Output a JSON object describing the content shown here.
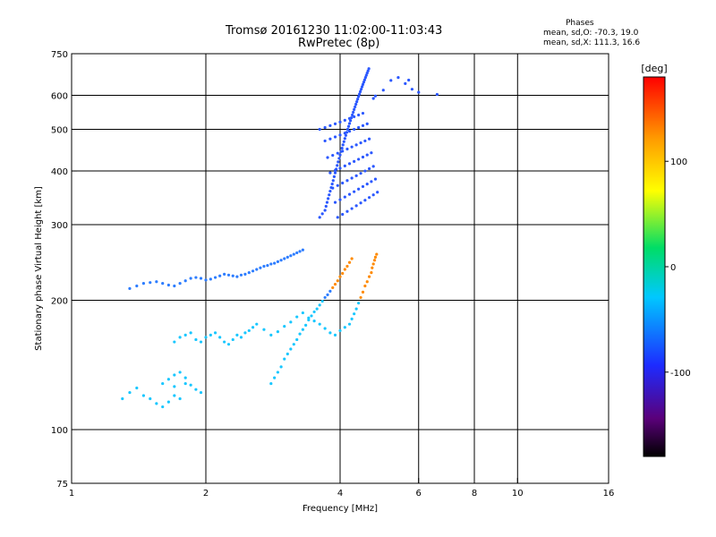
{
  "header": {
    "title": "Tromsø 20161230 11:02:00-11:03:43",
    "subtitle": "RwPretec (8p)"
  },
  "phase_info": {
    "heading": "Phases",
    "line_o": "mean, sd,O: -70.3, 19.0",
    "line_x": "mean, sd,X: 111.3, 16.6"
  },
  "chart_data": {
    "type": "scatter",
    "title": "Tromsø 20161230 11:02:00-11:03:43",
    "subtitle": "RwPretec (8p)",
    "xlabel": "Frequency [MHz]",
    "ylabel": "Stationary phase Virtual Height [km]",
    "x_scale": "log",
    "y_scale": "log",
    "xlim": [
      1,
      16
    ],
    "ylim": [
      75,
      750
    ],
    "x_ticks": [
      1,
      2,
      4,
      6,
      8,
      10,
      16
    ],
    "y_ticks": [
      75,
      100,
      200,
      300,
      400,
      500,
      600,
      750
    ],
    "grid": true,
    "grid_x": [
      2,
      4,
      6,
      8,
      10
    ],
    "grid_y": [
      100,
      200,
      300,
      400,
      500,
      600
    ],
    "colorbar": {
      "label": "[deg]",
      "min": -180,
      "max": 180,
      "ticks": [
        100,
        0,
        -100
      ]
    },
    "series": [
      {
        "points": [
          [
            1.3,
            118
          ],
          [
            1.35,
            122
          ],
          [
            1.4,
            125
          ],
          [
            1.45,
            120
          ],
          [
            1.5,
            118
          ],
          [
            1.55,
            115
          ],
          [
            1.6,
            113
          ],
          [
            1.65,
            116
          ],
          [
            1.7,
            120
          ],
          [
            1.75,
            118
          ],
          [
            1.6,
            128
          ],
          [
            1.65,
            131
          ],
          [
            1.7,
            134
          ],
          [
            1.75,
            136
          ],
          [
            1.8,
            132
          ],
          [
            1.7,
            126
          ],
          [
            1.8,
            128
          ],
          [
            1.85,
            127
          ],
          [
            1.9,
            124
          ],
          [
            1.95,
            122
          ],
          [
            1.7,
            160
          ],
          [
            1.75,
            164
          ],
          [
            1.8,
            166
          ],
          [
            1.85,
            168
          ],
          [
            1.9,
            162
          ],
          [
            1.95,
            160
          ],
          [
            2.0,
            164
          ],
          [
            2.05,
            166
          ],
          [
            2.1,
            168
          ],
          [
            2.15,
            164
          ],
          [
            2.2,
            160
          ],
          [
            2.25,
            158
          ],
          [
            2.3,
            162
          ],
          [
            2.35,
            166
          ],
          [
            2.4,
            164
          ],
          [
            2.45,
            168
          ],
          [
            2.5,
            170
          ],
          [
            2.55,
            173
          ],
          [
            2.6,
            176
          ],
          [
            2.7,
            171
          ],
          [
            2.8,
            166
          ],
          [
            2.9,
            169
          ],
          [
            3.0,
            174
          ],
          [
            3.1,
            178
          ],
          [
            3.2,
            183
          ],
          [
            3.3,
            187
          ],
          [
            3.4,
            182
          ],
          [
            3.5,
            179
          ],
          [
            3.6,
            176
          ],
          [
            3.7,
            172
          ],
          [
            3.8,
            168
          ],
          [
            3.9,
            166
          ],
          [
            4.0,
            170
          ],
          [
            4.1,
            173
          ],
          [
            4.2,
            176
          ],
          [
            4.25,
            181
          ],
          [
            4.3,
            186
          ],
          [
            4.35,
            191
          ],
          [
            4.4,
            197
          ],
          [
            4.45,
            203
          ],
          [
            4.5,
            209
          ],
          [
            4.55,
            216
          ],
          [
            4.6,
            221
          ],
          [
            4.65,
            227
          ],
          [
            4.7,
            232
          ],
          [
            4.72,
            238
          ],
          [
            4.75,
            243
          ],
          [
            4.78,
            248
          ],
          [
            4.8,
            252
          ],
          [
            4.83,
            256
          ],
          [
            1.35,
            213
          ],
          [
            1.4,
            216
          ],
          [
            1.45,
            219
          ],
          [
            1.5,
            220
          ],
          [
            1.55,
            221
          ],
          [
            1.6,
            219
          ],
          [
            1.65,
            217
          ],
          [
            1.7,
            216
          ],
          [
            1.75,
            219
          ],
          [
            1.8,
            222
          ],
          [
            1.85,
            225
          ],
          [
            1.9,
            226
          ],
          [
            1.95,
            225
          ],
          [
            2.0,
            223
          ],
          [
            2.05,
            224
          ],
          [
            2.1,
            226
          ],
          [
            2.15,
            228
          ],
          [
            2.2,
            230
          ],
          [
            2.25,
            229
          ],
          [
            2.3,
            228
          ],
          [
            2.35,
            227
          ],
          [
            2.4,
            229
          ],
          [
            2.45,
            230
          ],
          [
            2.5,
            232
          ],
          [
            2.55,
            234
          ],
          [
            2.6,
            236
          ],
          [
            2.65,
            238
          ],
          [
            2.7,
            240
          ],
          [
            2.75,
            241
          ],
          [
            2.8,
            243
          ],
          [
            2.85,
            244
          ],
          [
            2.9,
            246
          ],
          [
            2.95,
            248
          ],
          [
            3.0,
            250
          ],
          [
            3.05,
            252
          ],
          [
            3.1,
            254
          ],
          [
            3.15,
            256
          ],
          [
            3.2,
            258
          ],
          [
            3.25,
            260
          ],
          [
            3.3,
            262
          ],
          [
            2.8,
            128
          ],
          [
            2.85,
            132
          ],
          [
            2.9,
            136
          ],
          [
            2.95,
            140
          ],
          [
            3.0,
            146
          ],
          [
            3.05,
            150
          ],
          [
            3.1,
            154
          ],
          [
            3.15,
            158
          ],
          [
            3.2,
            162
          ],
          [
            3.25,
            167
          ],
          [
            3.3,
            171
          ],
          [
            3.35,
            175
          ],
          [
            3.4,
            180
          ],
          [
            3.45,
            184
          ],
          [
            3.5,
            188
          ],
          [
            3.55,
            191
          ],
          [
            3.6,
            195
          ],
          [
            3.65,
            199
          ],
          [
            3.7,
            203
          ],
          [
            3.75,
            206
          ],
          [
            3.8,
            210
          ],
          [
            3.85,
            214
          ],
          [
            3.9,
            218
          ],
          [
            3.95,
            222
          ],
          [
            4.0,
            227
          ],
          [
            4.05,
            231
          ],
          [
            4.1,
            236
          ],
          [
            4.15,
            240
          ],
          [
            4.2,
            245
          ],
          [
            4.25,
            250
          ],
          [
            3.6,
            312
          ],
          [
            3.65,
            318
          ],
          [
            3.7,
            324
          ],
          [
            3.72,
            331
          ],
          [
            3.74,
            338
          ],
          [
            3.76,
            345
          ],
          [
            3.78,
            352
          ],
          [
            3.8,
            359
          ],
          [
            3.82,
            366
          ],
          [
            3.84,
            373
          ],
          [
            3.86,
            380
          ],
          [
            3.88,
            388
          ],
          [
            3.9,
            396
          ],
          [
            3.92,
            404
          ],
          [
            3.94,
            412
          ],
          [
            3.96,
            420
          ],
          [
            3.98,
            428
          ],
          [
            4.0,
            436
          ],
          [
            4.02,
            444
          ],
          [
            4.04,
            452
          ],
          [
            4.06,
            460
          ],
          [
            4.08,
            468
          ],
          [
            4.1,
            476
          ],
          [
            4.12,
            484
          ],
          [
            4.14,
            492
          ],
          [
            4.16,
            500
          ],
          [
            4.18,
            508
          ],
          [
            4.2,
            516
          ],
          [
            4.22,
            524
          ],
          [
            4.24,
            532
          ],
          [
            4.26,
            540
          ],
          [
            4.28,
            548
          ],
          [
            4.3,
            556
          ],
          [
            4.32,
            564
          ],
          [
            4.34,
            572
          ],
          [
            4.36,
            580
          ],
          [
            4.38,
            588
          ],
          [
            4.4,
            596
          ],
          [
            4.42,
            604
          ],
          [
            4.44,
            612
          ],
          [
            4.46,
            620
          ],
          [
            4.48,
            628
          ],
          [
            4.5,
            636
          ],
          [
            4.52,
            644
          ],
          [
            4.54,
            652
          ],
          [
            4.56,
            660
          ],
          [
            4.58,
            668
          ],
          [
            4.6,
            676
          ],
          [
            4.62,
            684
          ],
          [
            4.64,
            692
          ],
          [
            6.6,
            603
          ],
          [
            5.7,
            651
          ],
          [
            5.6,
            639
          ],
          [
            5.0,
            617
          ],
          [
            4.8,
            598
          ],
          [
            4.75,
            590
          ],
          [
            5.2,
            650
          ],
          [
            5.4,
            660
          ],
          [
            5.8,
            620
          ],
          [
            6.0,
            610
          ],
          [
            3.6,
            500
          ],
          [
            3.7,
            505
          ],
          [
            3.8,
            510
          ],
          [
            3.9,
            515
          ],
          [
            4.0,
            520
          ],
          [
            4.1,
            525
          ],
          [
            4.2,
            530
          ],
          [
            4.3,
            535
          ],
          [
            4.4,
            540
          ],
          [
            4.5,
            545
          ],
          [
            3.7,
            470
          ],
          [
            3.8,
            475
          ],
          [
            3.9,
            480
          ],
          [
            4.0,
            485
          ],
          [
            4.1,
            490
          ],
          [
            4.2,
            495
          ],
          [
            4.3,
            500
          ],
          [
            4.4,
            505
          ],
          [
            4.5,
            510
          ],
          [
            4.6,
            515
          ],
          [
            3.75,
            430
          ],
          [
            3.85,
            435
          ],
          [
            3.95,
            440
          ],
          [
            4.05,
            445
          ],
          [
            4.15,
            450
          ],
          [
            4.25,
            455
          ],
          [
            4.35,
            460
          ],
          [
            4.45,
            465
          ],
          [
            4.55,
            470
          ],
          [
            4.65,
            475
          ],
          [
            3.8,
            396
          ],
          [
            3.9,
            401
          ],
          [
            4.0,
            406
          ],
          [
            4.1,
            411
          ],
          [
            4.2,
            416
          ],
          [
            4.3,
            421
          ],
          [
            4.4,
            426
          ],
          [
            4.5,
            431
          ],
          [
            4.6,
            436
          ],
          [
            4.7,
            441
          ],
          [
            3.85,
            365
          ],
          [
            3.95,
            370
          ],
          [
            4.05,
            375
          ],
          [
            4.15,
            380
          ],
          [
            4.25,
            385
          ],
          [
            4.35,
            390
          ],
          [
            4.45,
            395
          ],
          [
            4.55,
            400
          ],
          [
            4.65,
            405
          ],
          [
            4.75,
            410
          ],
          [
            3.9,
            338
          ],
          [
            4.0,
            343
          ],
          [
            4.1,
            348
          ],
          [
            4.2,
            353
          ],
          [
            4.3,
            358
          ],
          [
            4.4,
            363
          ],
          [
            4.5,
            368
          ],
          [
            4.6,
            373
          ],
          [
            4.7,
            378
          ],
          [
            4.8,
            383
          ],
          [
            3.95,
            312
          ],
          [
            4.05,
            317
          ],
          [
            4.15,
            322
          ],
          [
            4.25,
            327
          ],
          [
            4.35,
            332
          ],
          [
            4.45,
            337
          ],
          [
            4.55,
            342
          ],
          [
            4.65,
            347
          ],
          [
            4.75,
            352
          ],
          [
            4.85,
            357
          ]
        ]
      }
    ]
  }
}
